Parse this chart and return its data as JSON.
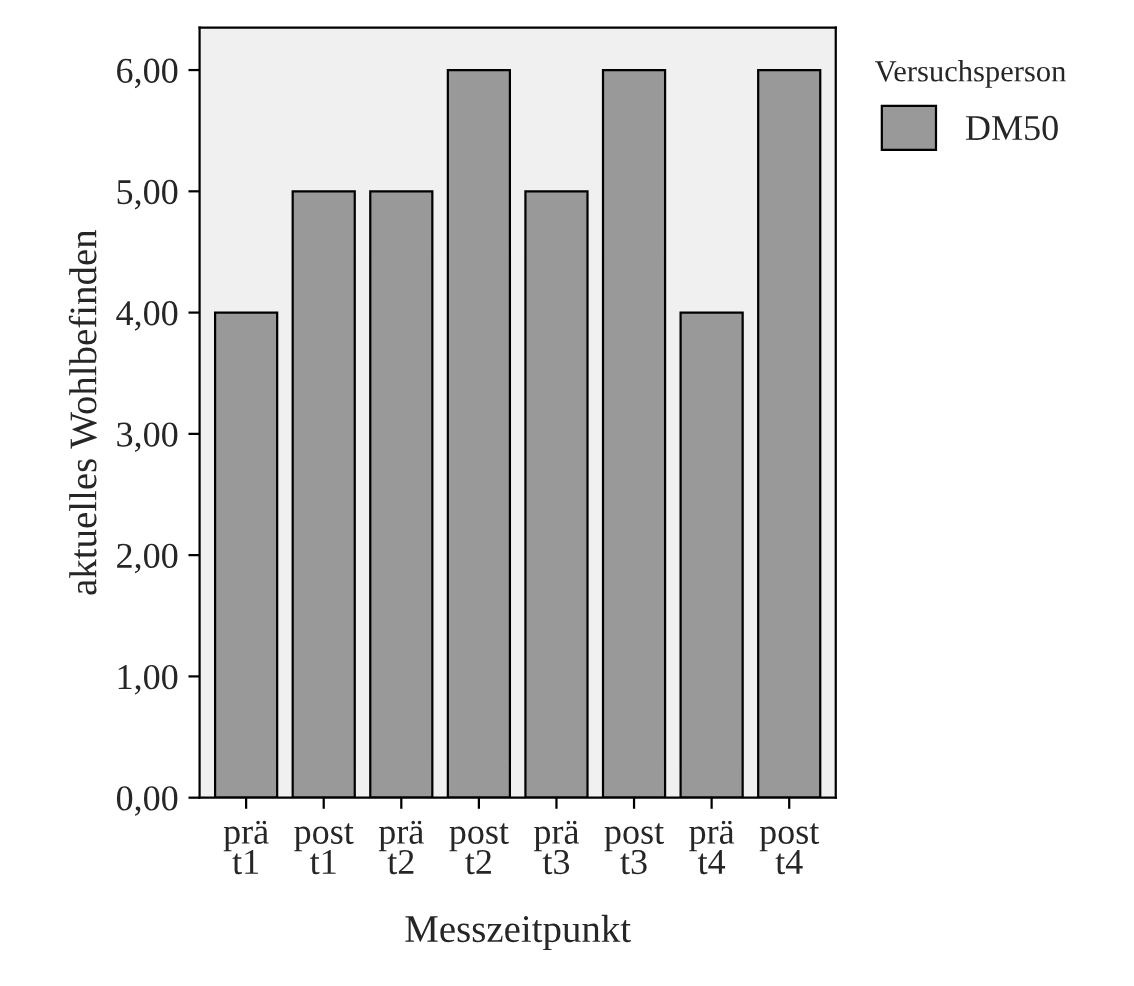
{
  "chart_data": {
    "type": "bar",
    "xlabel": "Messzeitpunkt",
    "ylabel": "aktuelles Wohlbefinden",
    "legend_title": "Versuchsperson",
    "categories": [
      "prä\nt1",
      "post\nt1",
      "prä\nt2",
      "post\nt2",
      "prä\nt3",
      "post\nt3",
      "prä\nt4",
      "post\nt4"
    ],
    "series": [
      {
        "name": "DM50",
        "color": "#999999",
        "values": [
          4,
          5,
          5,
          6,
          5,
          6,
          4,
          6
        ]
      }
    ],
    "ylim": [
      0,
      6.35
    ],
    "yticks": [
      {
        "value": 0,
        "label": "0,00"
      },
      {
        "value": 1,
        "label": "1,00"
      },
      {
        "value": 2,
        "label": "2,00"
      },
      {
        "value": 3,
        "label": "3,00"
      },
      {
        "value": 4,
        "label": "4,00"
      },
      {
        "value": 5,
        "label": "5,00"
      },
      {
        "value": 6,
        "label": "6,00"
      }
    ],
    "grid": false,
    "legend": "top right"
  }
}
